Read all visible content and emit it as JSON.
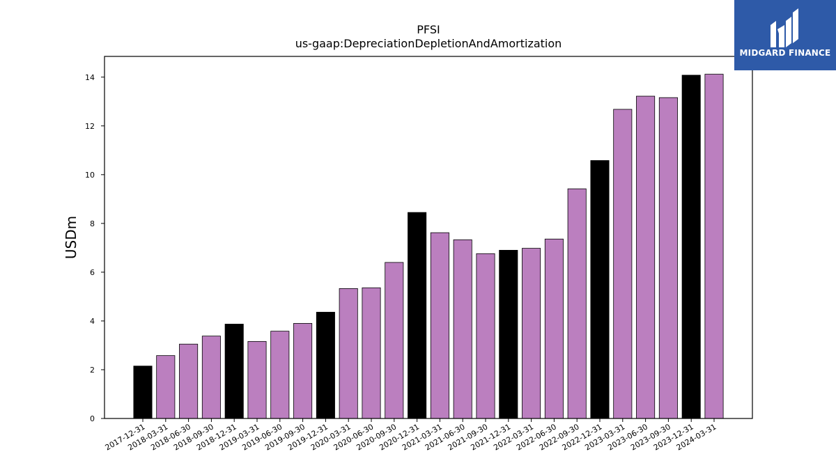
{
  "chart_data": {
    "type": "bar",
    "title": "PFSI",
    "subtitle": "us-gaap:DepreciationDepletionAndAmortization",
    "xlabel": "",
    "ylabel": "USDm",
    "ylim": [
      0,
      14.85
    ],
    "yticks": [
      0,
      2,
      4,
      6,
      8,
      10,
      12,
      14
    ],
    "grid": false,
    "categories": [
      "2017-12-31",
      "2018-03-31",
      "2018-06-30",
      "2018-09-30",
      "2018-12-31",
      "2019-03-31",
      "2019-06-30",
      "2019-09-30",
      "2019-12-31",
      "2020-03-31",
      "2020-06-30",
      "2020-09-30",
      "2020-12-31",
      "2021-03-31",
      "2021-06-30",
      "2021-09-30",
      "2021-12-31",
      "2022-03-31",
      "2022-06-30",
      "2022-09-30",
      "2022-12-31",
      "2023-03-31",
      "2023-06-30",
      "2023-09-30",
      "2023-12-31",
      "2024-03-31"
    ],
    "values": [
      2.15,
      2.58,
      3.05,
      3.38,
      3.87,
      3.16,
      3.58,
      3.9,
      4.36,
      5.33,
      5.36,
      6.4,
      8.45,
      7.62,
      7.33,
      6.76,
      6.9,
      6.98,
      7.36,
      9.42,
      10.58,
      12.68,
      13.22,
      13.16,
      14.08,
      14.12
    ],
    "bar_colors": [
      "#000000",
      "#bb7fbf",
      "#bb7fbf",
      "#bb7fbf",
      "#000000",
      "#bb7fbf",
      "#bb7fbf",
      "#bb7fbf",
      "#000000",
      "#bb7fbf",
      "#bb7fbf",
      "#bb7fbf",
      "#000000",
      "#bb7fbf",
      "#bb7fbf",
      "#bb7fbf",
      "#000000",
      "#bb7fbf",
      "#bb7fbf",
      "#bb7fbf",
      "#000000",
      "#bb7fbf",
      "#bb7fbf",
      "#bb7fbf",
      "#000000",
      "#bb7fbf"
    ]
  },
  "logo": {
    "text": "MIDGARD FINANCE",
    "background": "#2e5aa8",
    "icon": "midgard-logo-icon"
  }
}
